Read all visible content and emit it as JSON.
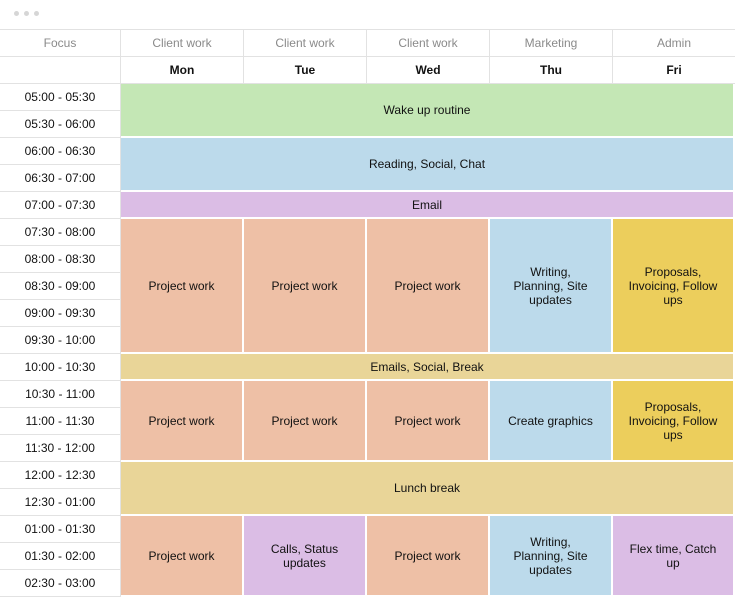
{
  "window": {
    "controls": [
      "dot",
      "dot",
      "dot"
    ]
  },
  "header": {
    "focus_label": "Focus",
    "focus_per_day": [
      "Client work",
      "Client work",
      "Client work",
      "Marketing",
      "Admin"
    ],
    "days": [
      "Mon",
      "Tue",
      "Wed",
      "Thu",
      "Fri"
    ]
  },
  "times": [
    "05:00 - 05:30",
    "05:30 - 06:00",
    "06:00 - 06:30",
    "06:30 - 07:00",
    "07:00 - 07:30",
    "07:30 - 08:00",
    "08:00 - 08:30",
    "08:30 - 09:00",
    "09:00 - 09:30",
    "09:30 - 10:00",
    "10:00 - 10:30",
    "10:30 - 11:00",
    "11:00 - 11:30",
    "11:30 - 12:00",
    "12:00 - 12:30",
    "12:30 - 01:00",
    "01:00 - 01:30",
    "01:30 - 02:00",
    "02:30 - 03:00"
  ],
  "blocks": {
    "wake_up": "Wake up routine",
    "reading": "Reading, Social, Chat",
    "email": "Email",
    "project_work": "Project work",
    "writing": "Writing, Planning, Site updates",
    "proposals": "Proposals, Invoicing, Follow ups",
    "emails_break": "Emails, Social, Break",
    "create_graphics": "Create graphics",
    "lunch": "Lunch break",
    "calls": "Calls, Status updates",
    "flex": "Flex time, Catch up"
  },
  "colors": {
    "green": "#c4e7b5",
    "blue": "#bcdaeb",
    "purple": "#dbbde5",
    "salmon": "#eec0a6",
    "yellow": "#ecce5c",
    "tan": "#e9d598"
  }
}
